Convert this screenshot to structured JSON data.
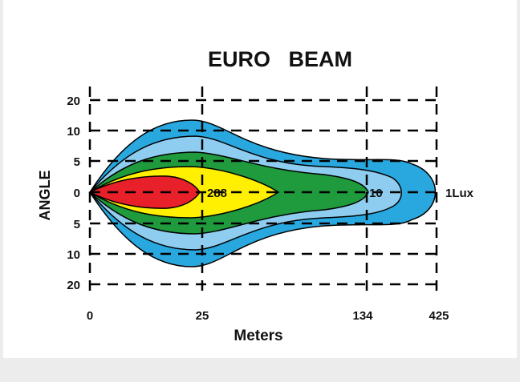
{
  "chart_data": {
    "type": "area",
    "title": "EURO   BEAM",
    "xlabel": "Meters",
    "ylabel": "ANGLE",
    "x_ticks": [
      "0",
      "25",
      "134",
      "425"
    ],
    "y_ticks": [
      "20",
      "10",
      "5",
      "0",
      "5",
      "10",
      "20"
    ],
    "grid": true,
    "grid_style": "dashed",
    "annotations": [
      "288",
      "10",
      "1Lux"
    ],
    "contour_colors": [
      "#29a8e0",
      "#8fcdf0",
      "#1f9a3d",
      "#ffef00",
      "#e8202a"
    ]
  }
}
